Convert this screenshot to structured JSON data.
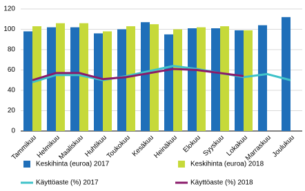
{
  "chart_data": {
    "type": "bar",
    "categories": [
      "Tammikuu",
      "Helmikuu",
      "Maaliskuu",
      "Huhtikuu",
      "Toukokuu",
      "Kesäkuu",
      "Heinäkuu",
      "Elokuu",
      "Syyskuu",
      "Lokakuu",
      "Marraskuu",
      "Joulukuu"
    ],
    "series": [
      {
        "name": "Keskihinta (euroa) 2017",
        "type": "bar",
        "color": "#1f6fb9",
        "values": [
          98,
          102,
          102,
          96,
          100,
          107,
          95,
          101,
          101,
          99,
          104,
          112
        ]
      },
      {
        "name": "Keskihinta (euroa) 2018",
        "type": "bar",
        "color": "#c6d93a",
        "values": [
          103,
          106,
          106,
          98,
          103,
          105,
          100,
          102,
          103,
          99,
          null,
          null
        ]
      },
      {
        "name": "Käyttöaste (%) 2017",
        "type": "line",
        "color": "#3fc2c9",
        "values": [
          48,
          55,
          55,
          50,
          54,
          59,
          64,
          61,
          57,
          53,
          56,
          50
        ]
      },
      {
        "name": "Käyttöaste (%) 2018",
        "type": "line",
        "color": "#8a1a6a",
        "values": [
          50,
          57,
          57,
          51,
          53,
          57,
          61,
          60,
          57,
          54,
          null,
          null
        ]
      }
    ],
    "ylim": [
      0,
      120
    ],
    "yticks": [
      0,
      20,
      40,
      60,
      80,
      100,
      120
    ],
    "grid": true
  }
}
